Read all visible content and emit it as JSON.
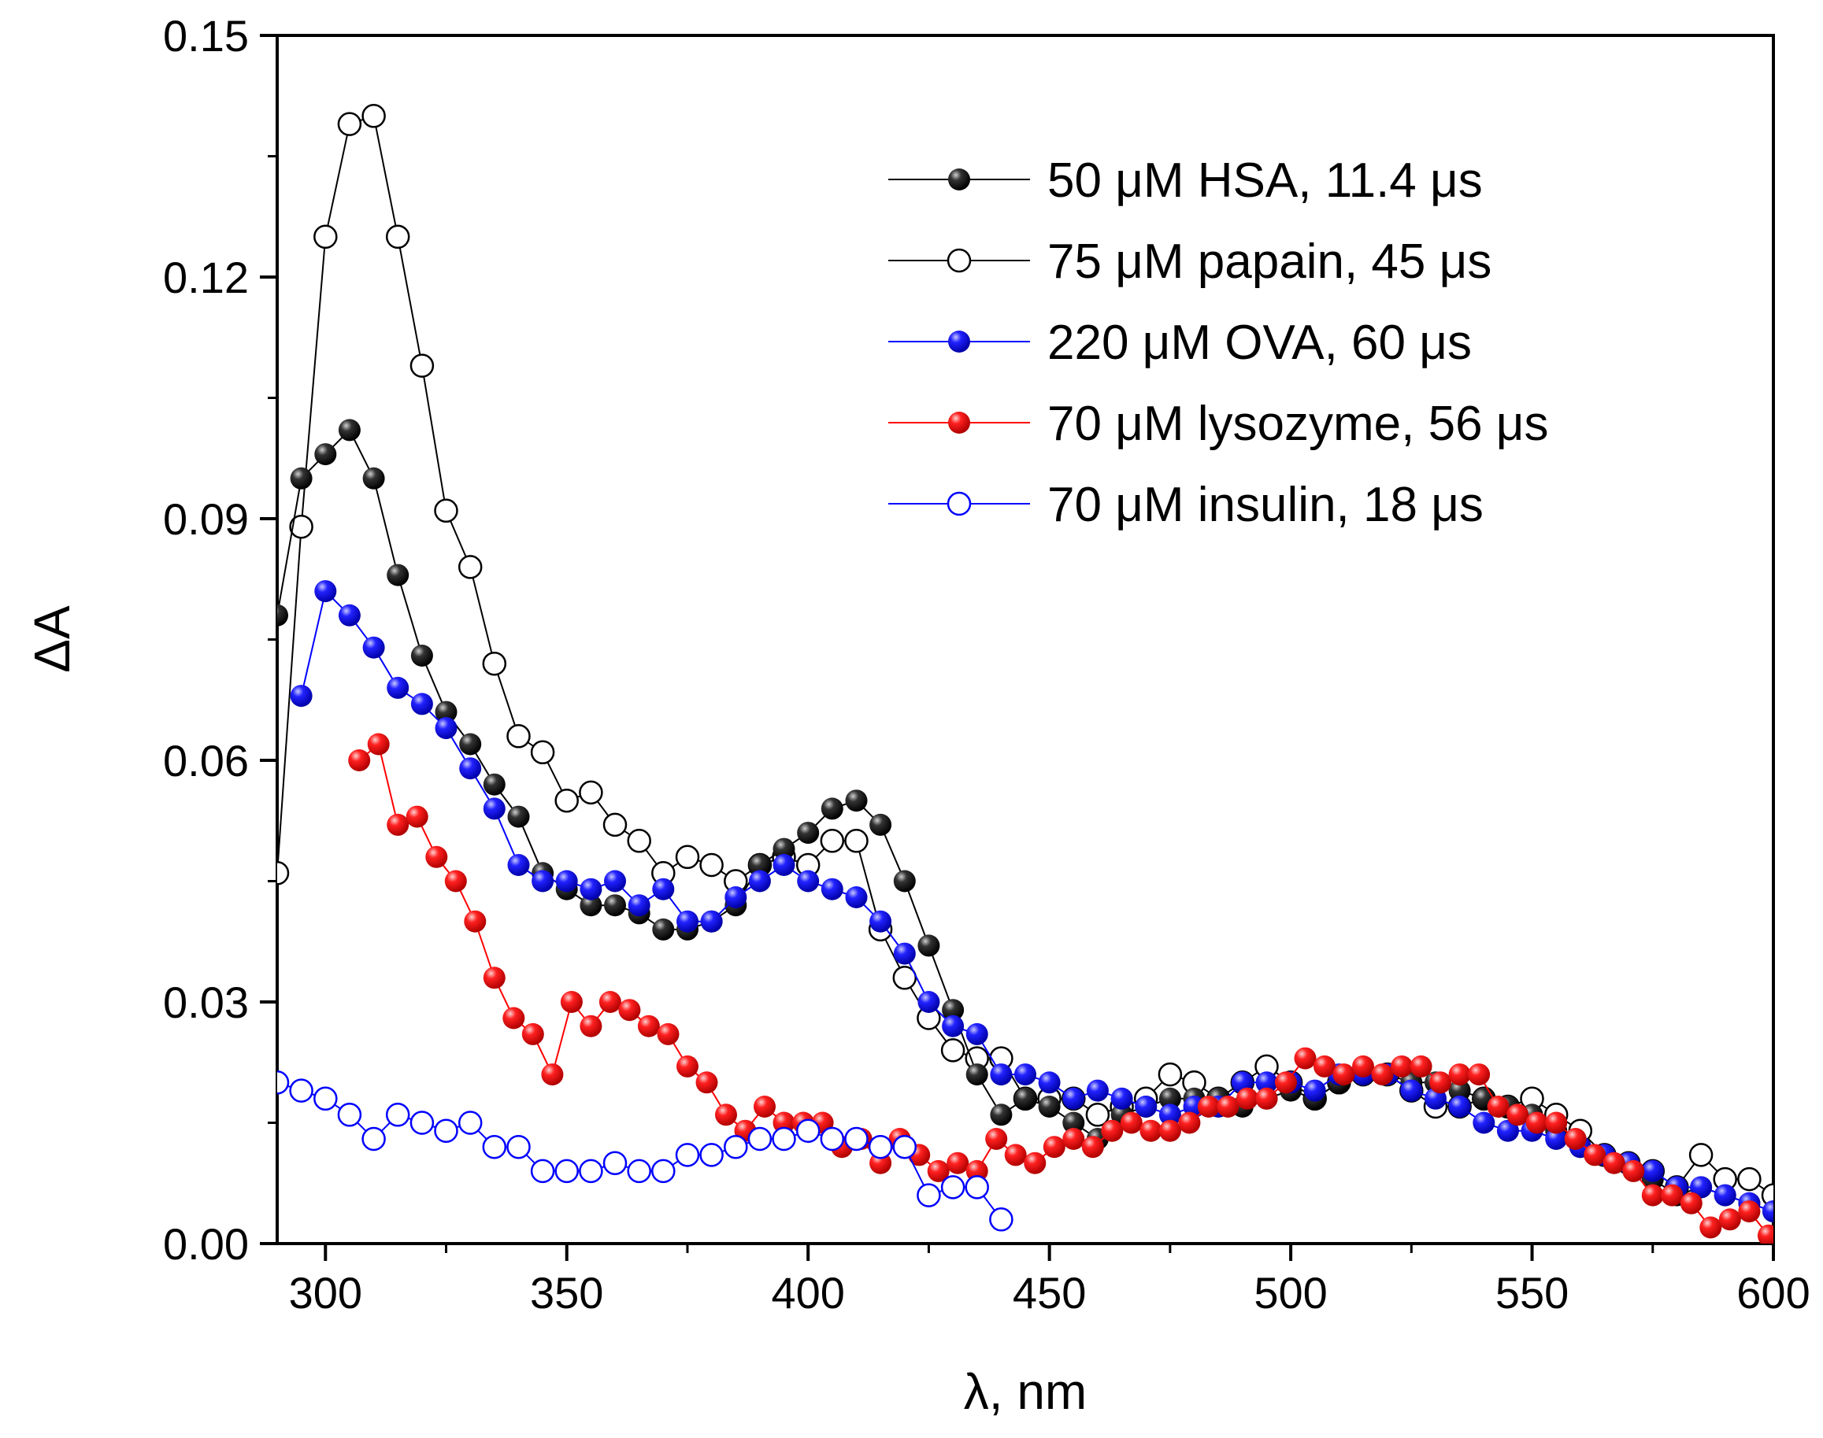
{
  "chart_data": {
    "type": "scatter",
    "xlabel": "λ, nm",
    "ylabel": "ΔA",
    "xlim": [
      290,
      600
    ],
    "ylim": [
      0,
      0.15
    ],
    "xticks": [
      300,
      350,
      400,
      450,
      500,
      550,
      600
    ],
    "xtick_labels": [
      "300",
      "350",
      "400",
      "450",
      "500",
      "550",
      "600"
    ],
    "yticks": [
      0,
      0.03,
      0.06,
      0.09,
      0.12,
      0.15
    ],
    "ytick_labels": [
      "0.00",
      "0.03",
      "0.06",
      "0.09",
      "0.12",
      "0.15"
    ],
    "legend_position": "top-right",
    "series": [
      {
        "name": "75 μM papain, 45 μs",
        "color": "#000000",
        "marker": "open",
        "x": [
          290,
          295,
          300,
          305,
          310,
          315,
          320,
          325,
          330,
          335,
          340,
          345,
          350,
          355,
          360,
          365,
          370,
          375,
          380,
          385,
          390,
          395,
          400,
          405,
          410,
          415,
          420,
          425,
          430,
          435,
          440,
          445,
          450,
          455,
          460,
          465,
          470,
          475,
          480,
          485,
          490,
          495,
          500,
          505,
          510,
          515,
          520,
          525,
          530,
          535,
          540,
          545,
          550,
          555,
          560,
          565,
          570,
          575,
          580,
          585,
          590,
          595,
          600
        ],
        "y": [
          0.046,
          0.089,
          0.125,
          0.139,
          0.14,
          0.125,
          0.109,
          0.091,
          0.084,
          0.072,
          0.063,
          0.061,
          0.055,
          0.056,
          0.052,
          0.05,
          0.046,
          0.048,
          0.047,
          0.045,
          0.047,
          0.048,
          0.047,
          0.05,
          0.05,
          0.039,
          0.033,
          0.028,
          0.024,
          0.023,
          0.023,
          0.018,
          0.018,
          0.018,
          0.016,
          0.017,
          0.018,
          0.021,
          0.02,
          0.018,
          0.02,
          0.022,
          0.02,
          0.018,
          0.02,
          0.021,
          0.021,
          0.019,
          0.017,
          0.017,
          0.018,
          0.017,
          0.018,
          0.016,
          0.014,
          0.011,
          0.01,
          0.009,
          0.007,
          0.011,
          0.008,
          0.008,
          0.006
        ]
      },
      {
        "name": "50 μM HSA, 11.4 μs",
        "color": "#000000",
        "marker": "filled",
        "x": [
          290,
          295,
          300,
          305,
          310,
          315,
          320,
          325,
          330,
          335,
          340,
          345,
          350,
          355,
          360,
          365,
          370,
          375,
          380,
          385,
          390,
          395,
          400,
          405,
          410,
          415,
          420,
          425,
          430,
          435,
          440,
          445,
          450,
          455,
          460,
          465,
          470,
          475,
          480,
          485,
          490,
          495,
          500,
          505,
          510,
          515,
          520,
          525,
          530,
          535,
          540,
          545,
          550,
          555,
          560,
          565,
          570,
          575,
          580,
          585,
          590,
          595,
          600
        ],
        "y": [
          0.078,
          0.095,
          0.098,
          0.101,
          0.095,
          0.083,
          0.073,
          0.066,
          0.062,
          0.057,
          0.053,
          0.046,
          0.044,
          0.042,
          0.042,
          0.041,
          0.039,
          0.039,
          0.04,
          0.042,
          0.047,
          0.049,
          0.051,
          0.054,
          0.055,
          0.052,
          0.045,
          0.037,
          0.029,
          0.021,
          0.016,
          0.018,
          0.017,
          0.015,
          0.013,
          0.016,
          0.017,
          0.018,
          0.018,
          0.018,
          0.017,
          0.018,
          0.019,
          0.018,
          0.02,
          0.021,
          0.021,
          0.02,
          0.02,
          0.019,
          0.018,
          0.017,
          0.016,
          0.014,
          0.012,
          0.011,
          0.01,
          0.008,
          0.006,
          0.007,
          0.006,
          0.005,
          0.004
        ]
      },
      {
        "name": "220 μM OVA, 60 μs",
        "color": "#0000ff",
        "marker": "filled",
        "x": [
          295,
          300,
          305,
          310,
          315,
          320,
          325,
          330,
          335,
          340,
          345,
          350,
          355,
          360,
          365,
          370,
          375,
          380,
          385,
          390,
          395,
          400,
          405,
          410,
          415,
          420,
          425,
          430,
          435,
          440,
          445,
          450,
          455,
          460,
          465,
          470,
          475,
          480,
          485,
          490,
          495,
          500,
          505,
          510,
          515,
          520,
          525,
          530,
          535,
          540,
          545,
          550,
          555,
          560,
          565,
          570,
          575,
          580,
          585,
          590,
          595,
          600
        ],
        "y": [
          0.068,
          0.081,
          0.078,
          0.074,
          0.069,
          0.067,
          0.064,
          0.059,
          0.054,
          0.047,
          0.045,
          0.045,
          0.044,
          0.045,
          0.042,
          0.044,
          0.04,
          0.04,
          0.043,
          0.045,
          0.047,
          0.045,
          0.044,
          0.043,
          0.04,
          0.036,
          0.03,
          0.027,
          0.026,
          0.021,
          0.021,
          0.02,
          0.018,
          0.019,
          0.018,
          0.017,
          0.016,
          0.017,
          0.017,
          0.02,
          0.02,
          0.02,
          0.019,
          0.021,
          0.021,
          0.021,
          0.019,
          0.018,
          0.017,
          0.015,
          0.014,
          0.014,
          0.013,
          0.012,
          0.011,
          0.01,
          0.009,
          0.007,
          0.007,
          0.006,
          0.005,
          0.004
        ]
      },
      {
        "name": "70 μM lysozyme, 56 μs",
        "color": "#ff0000",
        "marker": "filled",
        "x": [
          307,
          311,
          315,
          319,
          323,
          327,
          331,
          335,
          339,
          343,
          347,
          351,
          355,
          359,
          363,
          367,
          371,
          375,
          379,
          383,
          387,
          391,
          395,
          399,
          403,
          407,
          411,
          415,
          419,
          423,
          427,
          431,
          435,
          439,
          443,
          447,
          451,
          455,
          459,
          463,
          467,
          471,
          475,
          479,
          483,
          487,
          491,
          495,
          499,
          503,
          507,
          511,
          515,
          519,
          523,
          527,
          531,
          535,
          539,
          543,
          547,
          551,
          555,
          559,
          563,
          567,
          571,
          575,
          579,
          583,
          587,
          591,
          595,
          599
        ],
        "y": [
          0.06,
          0.062,
          0.052,
          0.053,
          0.048,
          0.045,
          0.04,
          0.033,
          0.028,
          0.026,
          0.021,
          0.03,
          0.027,
          0.03,
          0.029,
          0.027,
          0.026,
          0.022,
          0.02,
          0.016,
          0.014,
          0.017,
          0.015,
          0.015,
          0.015,
          0.012,
          0.013,
          0.01,
          0.013,
          0.011,
          0.009,
          0.01,
          0.009,
          0.013,
          0.011,
          0.01,
          0.012,
          0.013,
          0.012,
          0.014,
          0.015,
          0.014,
          0.014,
          0.015,
          0.017,
          0.017,
          0.018,
          0.018,
          0.02,
          0.023,
          0.022,
          0.021,
          0.022,
          0.021,
          0.022,
          0.022,
          0.02,
          0.021,
          0.021,
          0.017,
          0.016,
          0.015,
          0.015,
          0.013,
          0.011,
          0.01,
          0.009,
          0.006,
          0.006,
          0.005,
          0.002,
          0.003,
          0.004,
          0.001
        ]
      },
      {
        "name": "70 μM insulin, 18 μs",
        "color": "#0000ff",
        "marker": "open",
        "x": [
          290,
          295,
          300,
          305,
          310,
          315,
          320,
          325,
          330,
          335,
          340,
          345,
          350,
          355,
          360,
          365,
          370,
          375,
          380,
          385,
          390,
          395,
          400,
          405,
          410,
          415,
          420,
          425,
          430,
          435,
          440
        ],
        "y": [
          0.02,
          0.019,
          0.018,
          0.016,
          0.013,
          0.016,
          0.015,
          0.014,
          0.015,
          0.012,
          0.012,
          0.009,
          0.009,
          0.009,
          0.01,
          0.009,
          0.009,
          0.011,
          0.011,
          0.012,
          0.013,
          0.013,
          0.014,
          0.013,
          0.013,
          0.012,
          0.012,
          0.006,
          0.007,
          0.007,
          0.003
        ]
      }
    ],
    "legend_order": [
      1,
      0,
      2,
      3,
      4
    ]
  }
}
